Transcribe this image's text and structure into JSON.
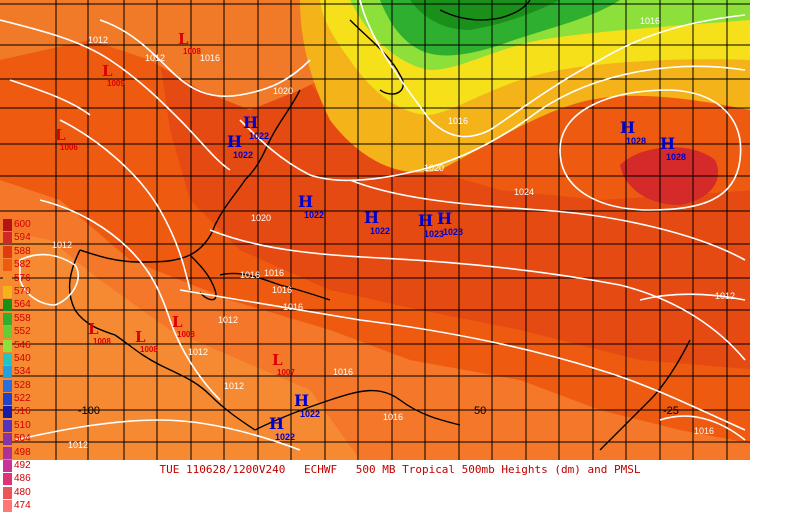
{
  "footer": {
    "datetime": "TUE 110628/1200V240",
    "model": "ECHWF",
    "product": "500 MB Tropical 500mb Heights (dm) and PMSL"
  },
  "legend": {
    "values": [
      "600",
      "594",
      "588",
      "582",
      "576",
      "570",
      "564",
      "558",
      "552",
      "546",
      "540",
      "534",
      "528",
      "522",
      "516",
      "510",
      "504",
      "498",
      "492",
      "486",
      "480",
      "474"
    ],
    "colors": [
      "#b41414",
      "#d22828",
      "#e23a10",
      "#ee5a10",
      "#f48a2a",
      "#f5b31a",
      "#1a8f1a",
      "#2faf2f",
      "#66cc33",
      "#8de03a",
      "#22c4c4",
      "#22a0e0",
      "#2a6ee0",
      "#2244cc",
      "#1a1aa8",
      "#5533bb",
      "#8833aa",
      "#aa3399",
      "#cc3399",
      "#e03377",
      "#ee5555",
      "#ff7777"
    ]
  },
  "map": {
    "longitude_labels": [
      "-100",
      "50",
      "-25"
    ],
    "highs": [
      {
        "label": "H",
        "pressure": "1022"
      },
      {
        "label": "H",
        "pressure": "1022"
      },
      {
        "label": "H",
        "pressure": "1022"
      },
      {
        "label": "H",
        "pressure": "1022"
      },
      {
        "label": "H",
        "pressure": "1023"
      },
      {
        "label": "H",
        "pressure": "1023"
      },
      {
        "label": "H",
        "pressure": "1028"
      },
      {
        "label": "H",
        "pressure": "1028"
      },
      {
        "label": "H",
        "pressure": "1022"
      },
      {
        "label": "H",
        "pressure": "1022"
      }
    ],
    "lows": [
      {
        "label": "L",
        "pressure": "1009"
      },
      {
        "label": "L",
        "pressure": "1006"
      },
      {
        "label": "L",
        "pressure": "1008"
      },
      {
        "label": "L",
        "pressure": "1008"
      },
      {
        "label": "L",
        "pressure": "1008"
      },
      {
        "label": "L",
        "pressure": "1008"
      },
      {
        "label": "L",
        "pressure": "1007"
      }
    ],
    "isobar_labels": [
      "1012",
      "1012",
      "1016",
      "1020",
      "1016",
      "1016",
      "1020",
      "1024",
      "1020",
      "1012",
      "1016",
      "1016",
      "1016",
      "1012",
      "1012",
      "1012",
      "1016",
      "1016",
      "1012",
      "1016",
      "1016",
      "1012"
    ]
  }
}
